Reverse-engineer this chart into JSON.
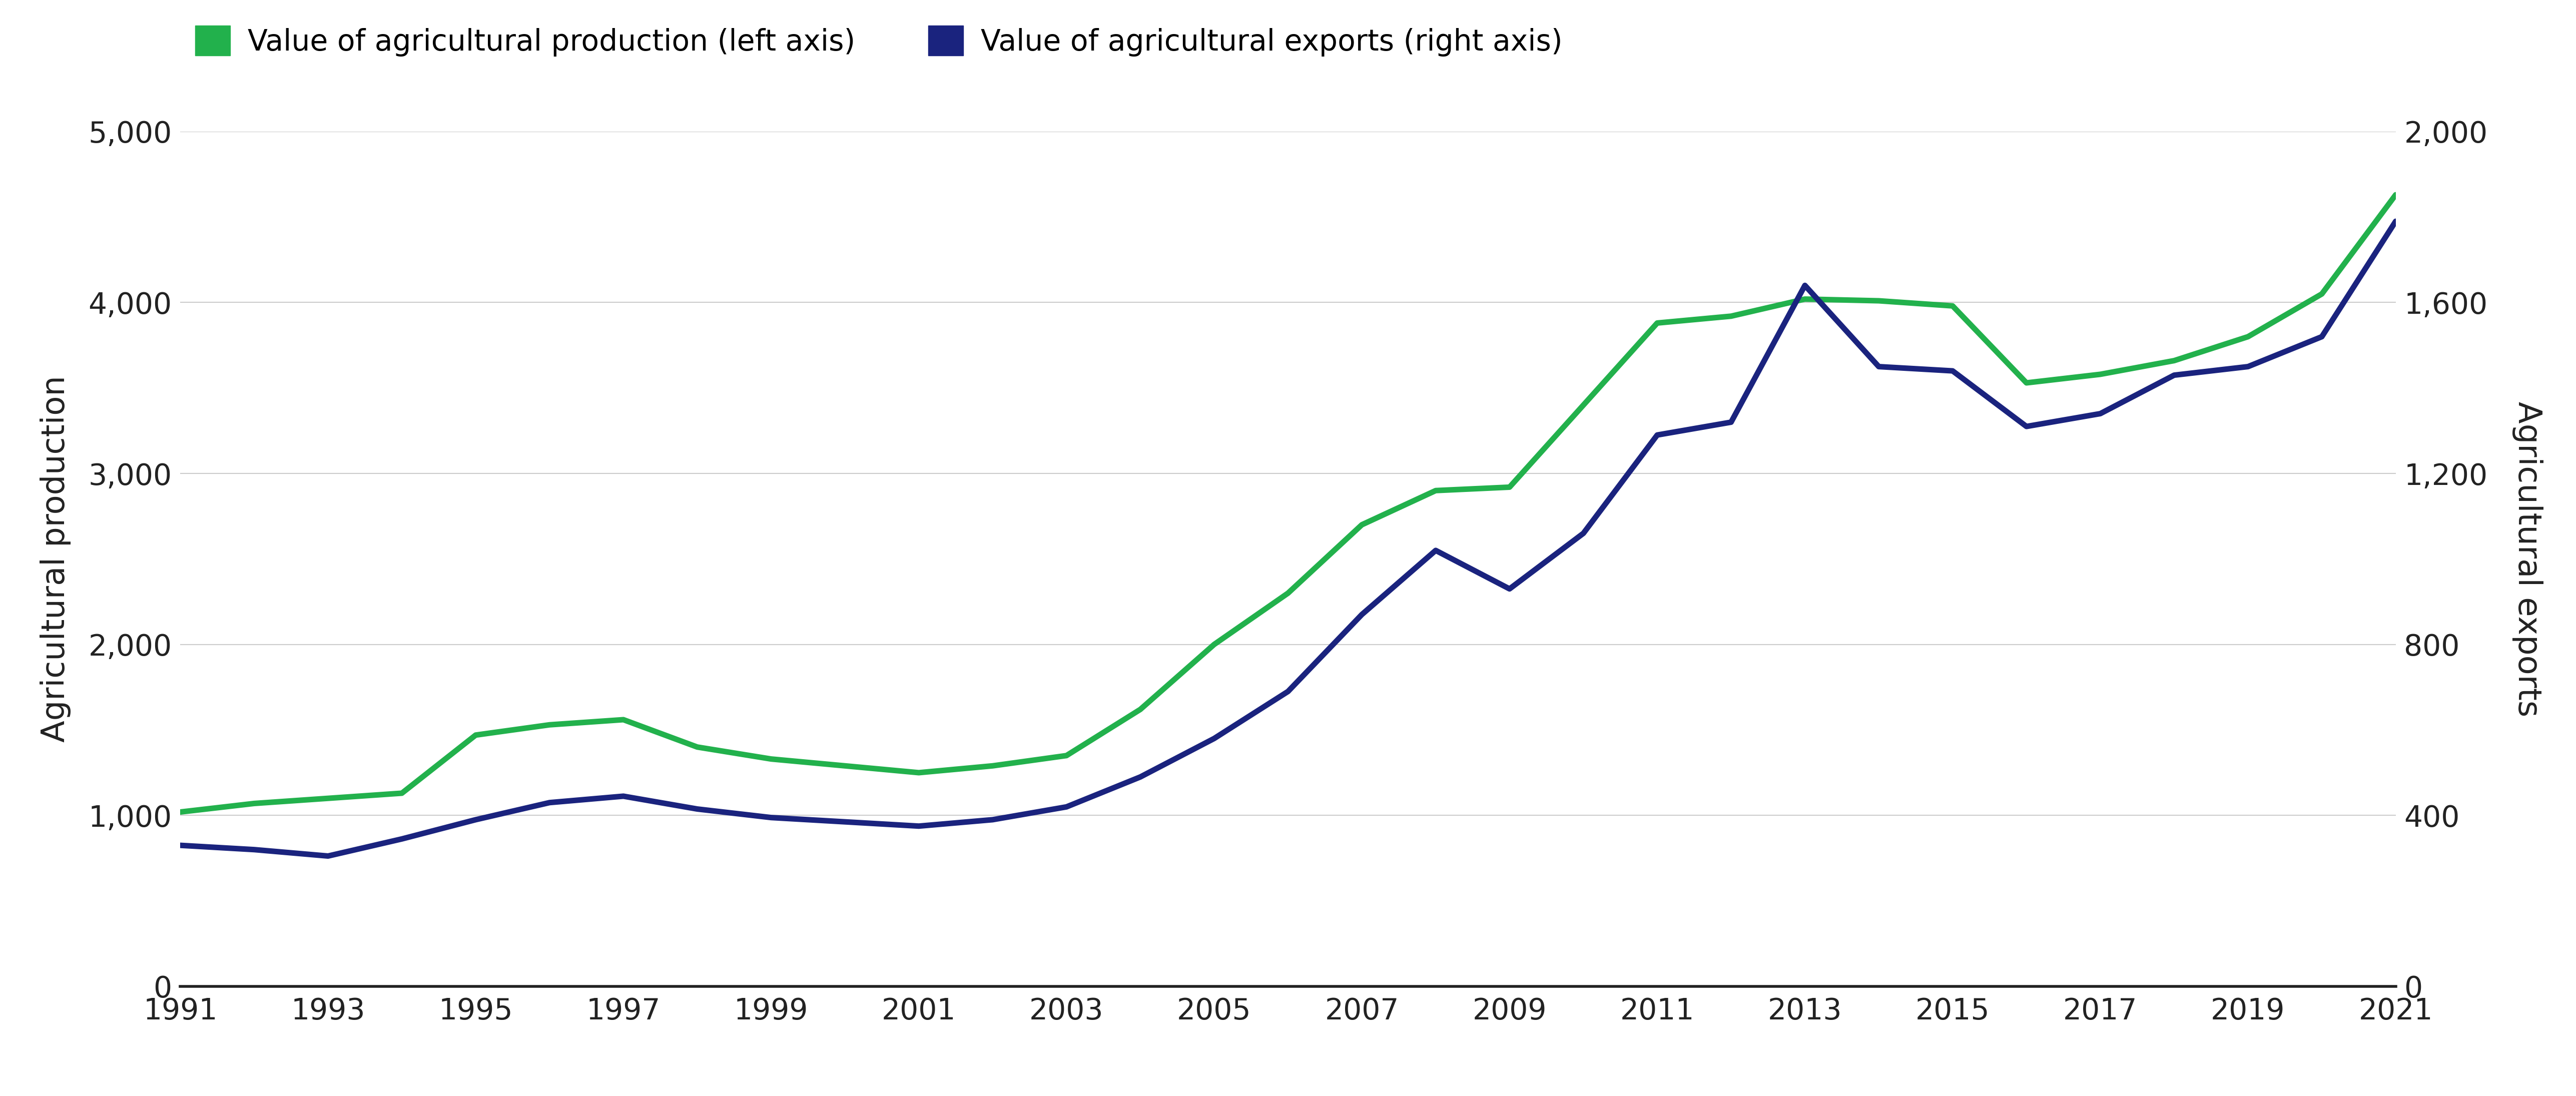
{
  "years": [
    1991,
    1992,
    1993,
    1994,
    1995,
    1996,
    1997,
    1998,
    1999,
    2000,
    2001,
    2002,
    2003,
    2004,
    2005,
    2006,
    2007,
    2008,
    2009,
    2010,
    2011,
    2012,
    2013,
    2014,
    2015,
    2016,
    2017,
    2018,
    2019,
    2020,
    2021
  ],
  "production": [
    1020,
    1070,
    1100,
    1130,
    1470,
    1530,
    1560,
    1400,
    1330,
    1290,
    1250,
    1290,
    1350,
    1620,
    2000,
    2300,
    2700,
    2900,
    2920,
    3400,
    3880,
    3920,
    4020,
    4010,
    3980,
    3530,
    3580,
    3660,
    3800,
    4050,
    4630
  ],
  "exports": [
    330,
    320,
    305,
    345,
    390,
    430,
    445,
    415,
    395,
    385,
    375,
    390,
    420,
    490,
    580,
    690,
    870,
    1020,
    930,
    1060,
    1290,
    1320,
    1640,
    1450,
    1440,
    1310,
    1340,
    1430,
    1450,
    1520,
    1790
  ],
  "production_color": "#22b14c",
  "exports_color": "#1a237e",
  "left_ylabel": "Agricultural production",
  "right_ylabel": "Agricultural exports",
  "legend_label_production": "Value of agricultural production (left axis)",
  "legend_label_exports": "Value of agricultural exports (right axis)",
  "left_ylim": [
    0,
    5000
  ],
  "right_ylim": [
    0,
    2000
  ],
  "left_yticks": [
    0,
    1000,
    2000,
    3000,
    4000,
    5000
  ],
  "right_yticks": [
    0,
    400,
    800,
    1200,
    1600,
    2000
  ],
  "xtick_years": [
    1991,
    1993,
    1995,
    1997,
    1999,
    2001,
    2003,
    2005,
    2007,
    2009,
    2011,
    2013,
    2015,
    2017,
    2019,
    2021
  ],
  "line_width": 8,
  "background_color": "#ffffff",
  "grid_color": "#cccccc",
  "tick_color": "#222222",
  "label_color": "#222222",
  "axis_bottom_color": "#222222"
}
